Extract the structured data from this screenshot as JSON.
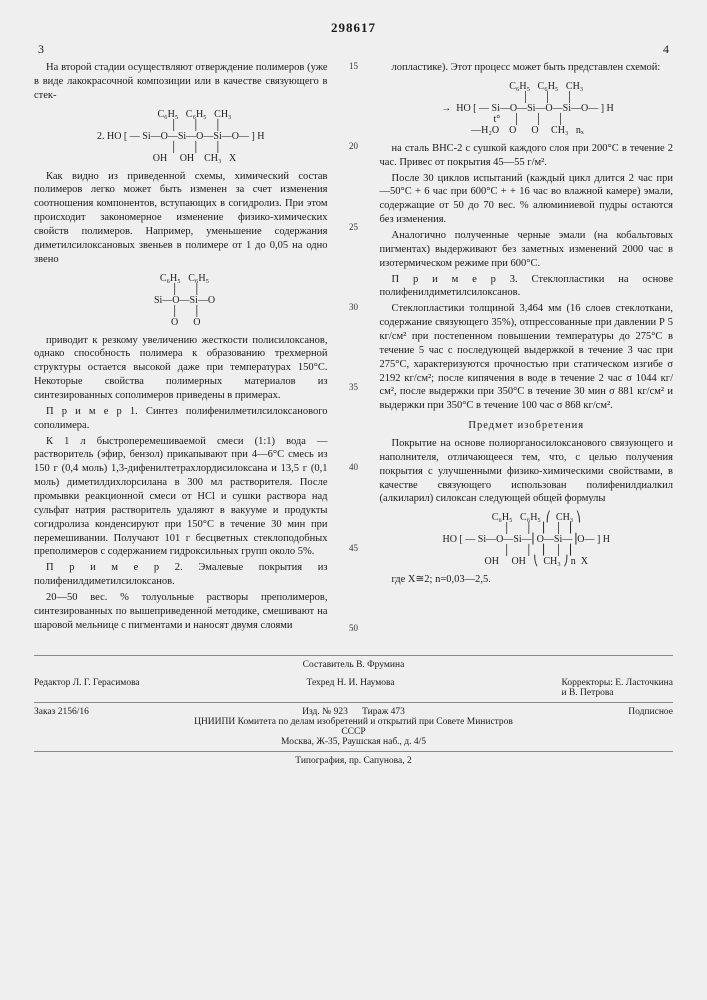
{
  "patent_number": "298617",
  "col_left_num": "3",
  "col_right_num": "4",
  "left": {
    "p1": "На второй стадии осуществляют отверждение полимеров (уже в виде лакокрасочной композиции или в качестве связующего в стек-",
    "chem_top": "           C₆H₅   C₆H₅   CH₃\n            │      │      │\n2. HO [ — Si—O—Si—O—Si—O— ] H\n            │      │      │\n           OH     OH    CH₃   X",
    "p2": "Как видно из приведенной схемы, химический состав полимеров легко может быть изменен за счет изменения соотношения компонентов, вступающих в согидролиз. При этом происходит закономерное изменение физико-химических свойств полимеров. Например, уменьшение содержания диметилсилоксановых звеньев в полимере от 1 до 0,05 на одно звено",
    "chem_mid": "   C₆H₅   C₆H₅\n    │      │\n   Si—O—Si—O\n    │      │\n    O      O",
    "p3": "приводит к резкому увеличению жесткости полисилоксанов, однако способность полимера к образованию трехмерной структуры остается высокой даже при температурах 150°С. Некоторые свойства полимерных материалов из синтезированных сополимеров приведены в примерах.",
    "p4": "П р и м е р 1. Синтез полифенилметилсилоксанового сополимера.",
    "p5": "К 1 л быстроперемешиваемой смеси (1:1) вода — растворитель (эфир, бензол) прикапывают при 4—6°С смесь из 150 г (0,4 моль) 1,3-дифенилтетрахлордисилоксана и 13,5 г (0,1 моль) диметилдихлорсилана в 300 мл растворителя. После промывки реакционной смеси от HCl и сушки раствора над сульфат натрия растворитель удаляют в вакууме и продукты согидролиза конденсируют при 150°С в течение 30 мин при перемешивании. Получают 101 г бесцветных стеклоподобных преполимеров с содержанием гидроксильных групп около 5%.",
    "p6": "П р и м е р 2. Эмалевые покрытия из полифенилдиметилсилоксанов.",
    "p7": "20—50 вес. % толуольные растворы преполимеров, синтезированных по вышеприведенной методике, смешивают на шаровой мельнице с пигментами и наносят двумя слоями"
  },
  "right": {
    "p1": "лопластике). Этот процесс может быть представлен схемой:",
    "chem_top": "                C₆H₅   C₆H₅   CH₃\n                 │      │      │\n →  HO [ — Si—O—Si—O—Si—O— ] H\n  t°     │      │      │\n —H₂O    O      O     CH₃   nₓ",
    "p2": "на сталь ВНС-2 с сушкой каждого слоя при 200°С в течение 2 час. Привес от покрытия 45—55 г/м².",
    "p3": "После 30 циклов испытаний (каждый цикл длится 2 час при —50°С + 6 час при 600°С + + 16 час во влажной камере) эмали, содержащие от 50 до 70 вес. % алюминиевой пудры остаются без изменения.",
    "p4": "Аналогично полученные черные эмали (на кобальтовых пигментах) выдерживают без заметных изменений 2000 час в изотермическом режиме при 600°С.",
    "p5": "П р и м е р 3. Стеклопластики на основе полифенилдиметилсилоксанов.",
    "p6": "Стеклопластики толщиной 3,464 мм (16 слоев стеклоткани, содержание связующего 35%), отпрессованные при давлении Р 5 кг/см² при постепенном повышении температуры до 275°С в течение 5 час с последующей выдержкой в течение 3 час при 275°С, характеризуются прочностью при статическом изгибе σ 2192 кг/см²; после кипячения в воде в течение 2 час σ 1044 кг/см², после выдержки при 350°С в течение 30 мин σ 881 кг/см² и выдержки при 350°С в течение 100 час σ 868 кг/см².",
    "section": "Предмет изобретения",
    "p7": "Покрытие на основе полиорганосилоксанового связующего и наполнителя, отличающееся тем, что, с целью получения покрытия с улучшенными физико-химическими свойствами, в качестве связующего использован полифенилдиалкил (алкиларил) силоксан следующей общей формулы",
    "chem_bot": "        C₆H₅   C₆H₅  ⎛  CH₃ ⎞\n         │      │    ⎜   │  ⎟\nHO [ — Si—O—Si—⎜O—Si—⎟O— ] H\n         │      │    ⎜   │  ⎟\n        OH     OH   ⎝  CH₃ ⎠ n  X",
    "p8": "где Х≅2; n=0,03—2,5."
  },
  "linenums": [
    "15",
    "20",
    "25",
    "30",
    "35",
    "40",
    "45",
    "50"
  ],
  "footer": {
    "composer": "Составитель В. Фрумина",
    "editor_l": "Редактор Л. Г. Герасимова",
    "tech": "Техред Н. И. Наумова",
    "corr1": "Корректоры: Е. Ласточкина",
    "corr2": "и В. Петрова",
    "zakaz": "Заказ 2156/16",
    "izd": "Изд. № 923",
    "tiraz": "Тираж 473",
    "pod": "Подписное",
    "org1": "ЦНИИПИ Комитета по делам изобретений и открытий при Совете Министров СССР",
    "org2": "Москва, Ж-35, Раушская наб., д. 4/5",
    "typo": "Типография, пр. Сапунова, 2"
  }
}
